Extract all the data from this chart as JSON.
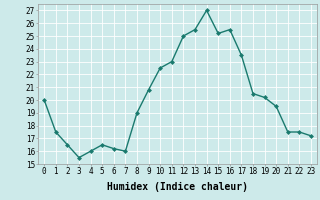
{
  "x": [
    0,
    1,
    2,
    3,
    4,
    5,
    6,
    7,
    8,
    9,
    10,
    11,
    12,
    13,
    14,
    15,
    16,
    17,
    18,
    19,
    20,
    21,
    22,
    23
  ],
  "y": [
    20,
    17.5,
    16.5,
    15.5,
    16,
    16.5,
    16.2,
    16,
    19,
    20.8,
    22.5,
    23,
    25,
    25.5,
    27,
    25.2,
    25.5,
    23.5,
    20.5,
    20.2,
    19.5,
    17.5,
    17.5,
    17.2
  ],
  "line_color": "#1a7a6e",
  "marker": "D",
  "marker_size": 2.0,
  "bg_color": "#cdeaea",
  "grid_color": "#ffffff",
  "xlabel": "Humidex (Indice chaleur)",
  "xlim": [
    -0.5,
    23.5
  ],
  "ylim": [
    15,
    27.5
  ],
  "yticks": [
    15,
    16,
    17,
    18,
    19,
    20,
    21,
    22,
    23,
    24,
    25,
    26,
    27
  ],
  "xtick_labels": [
    "0",
    "1",
    "2",
    "3",
    "4",
    "5",
    "6",
    "7",
    "8",
    "9",
    "10",
    "11",
    "12",
    "13",
    "14",
    "15",
    "16",
    "17",
    "18",
    "19",
    "20",
    "21",
    "22",
    "23"
  ],
  "tick_fontsize": 5.5,
  "xlabel_fontsize": 7.0,
  "linewidth": 1.0
}
